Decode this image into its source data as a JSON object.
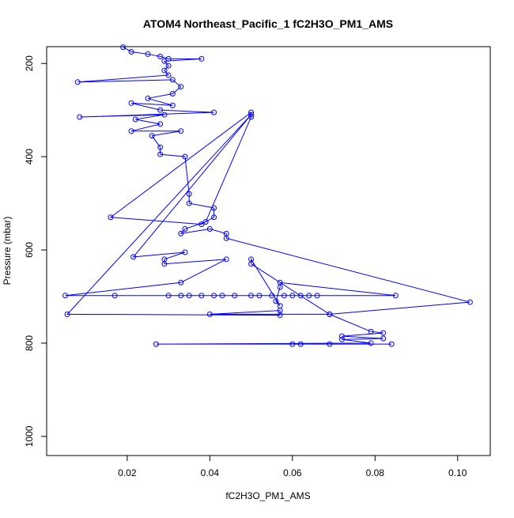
{
  "chart_data": {
    "type": "line",
    "title": "ATOM4 Northeast_Pacific_1 fC2H3O_PM1_AMS",
    "xlabel": "fC2H3O_PM1_AMS",
    "ylabel": "Pressure (mbar)",
    "color": "#0000ff",
    "marker": "open-circle",
    "x": [
      0.019,
      0.021,
      0.025,
      0.028,
      0.03,
      0.038,
      0.029,
      0.03,
      0.029,
      0.03,
      0.008,
      0.031,
      0.033,
      0.031,
      0.025,
      0.031,
      0.021,
      0.028,
      0.041,
      0.0085,
      0.029,
      0.022,
      0.028,
      0.021,
      0.033,
      0.026,
      0.028,
      0.028,
      0.034,
      0.035,
      0.035,
      0.041,
      0.041,
      0.038,
      0.016,
      0.05,
      0.05,
      0.039,
      0.034,
      0.033,
      0.04,
      0.044,
      0.044,
      0.103,
      0.069,
      0.04,
      0.057,
      0.057,
      0.0055,
      0.05,
      0.0215,
      0.034,
      0.029,
      0.029,
      0.044,
      0.033,
      0.005,
      0.017,
      0.03,
      0.033,
      0.035,
      0.038,
      0.041,
      0.043,
      0.046,
      0.05,
      0.052,
      0.055,
      0.058,
      0.06,
      0.062,
      0.064,
      0.066,
      0.085,
      0.057,
      0.057,
      0.056,
      0.057,
      0.05,
      0.05,
      0.069,
      0.079,
      0.082,
      0.072,
      0.082,
      0.072,
      0.079,
      0.027,
      0.06,
      0.062,
      0.069,
      0.084
    ],
    "values": [
      165,
      175,
      180,
      185,
      190,
      190,
      195,
      205,
      215,
      225,
      240,
      235,
      250,
      265,
      275,
      290,
      285,
      300,
      305,
      315,
      310,
      320,
      330,
      345,
      345,
      355,
      380,
      395,
      400,
      480,
      500,
      510,
      530,
      545,
      530,
      305,
      315,
      540,
      555,
      565,
      555,
      565,
      575,
      712,
      738,
      738,
      730,
      740,
      738,
      310,
      615,
      605,
      620,
      630,
      620,
      670,
      698,
      698,
      698,
      698,
      698,
      698,
      698,
      698,
      698,
      698,
      698,
      698,
      698,
      698,
      698,
      698,
      698,
      698,
      670,
      680,
      710,
      720,
      620,
      630,
      738,
      775,
      778,
      785,
      790,
      792,
      800,
      802,
      802,
      802,
      802,
      802
    ],
    "xlim": [
      0.0005,
      0.1079
    ],
    "xticks": [
      0.02,
      0.04,
      0.06,
      0.08,
      {
        "value": 0.1,
        "label": "0.10"
      }
    ],
    "ylim": [
      1041,
      164
    ],
    "yticks": [
      200,
      400,
      600,
      800,
      1000
    ]
  }
}
